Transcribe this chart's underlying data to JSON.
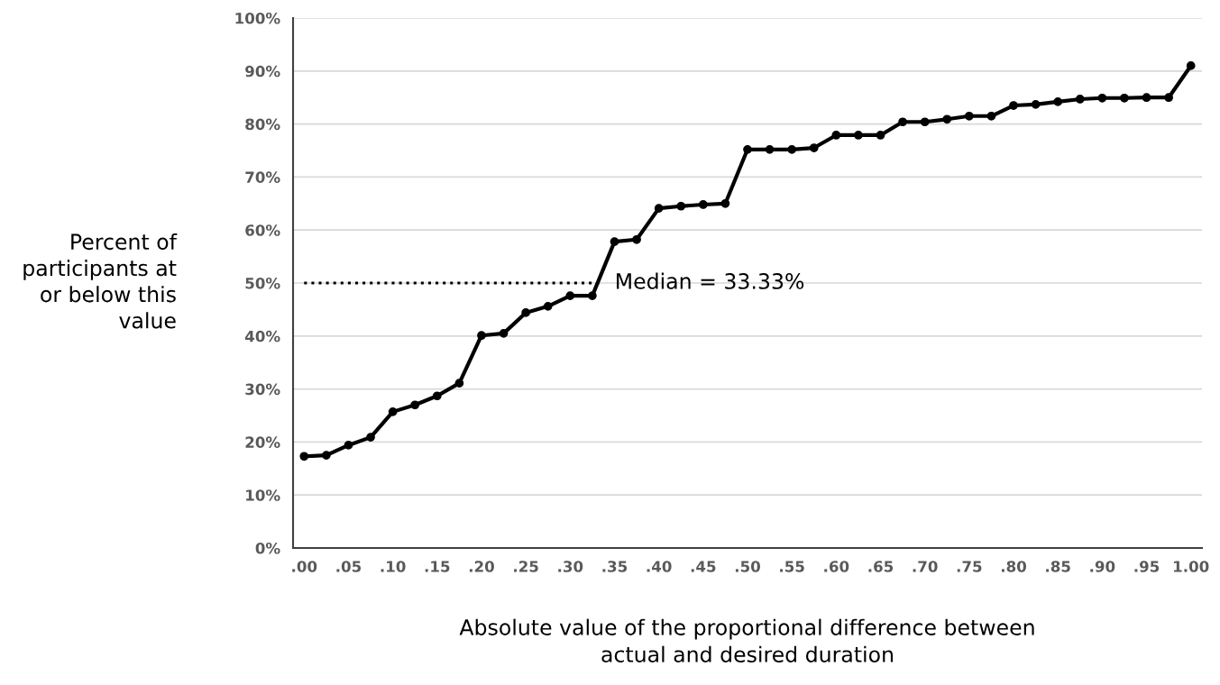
{
  "chart_data": {
    "type": "line",
    "xlabel": "Absolute value of the proportional difference between\nactual and desired duration",
    "ylabel": "Percent of\nparticipants at\nor below this\nvalue",
    "series": [
      {
        "color": "#000000",
        "marker": "circle",
        "line_style": "solid",
        "x": [
          0,
          0.025,
          0.05,
          0.075,
          0.1,
          0.125,
          0.15,
          0.175,
          0.2,
          0.225,
          0.25,
          0.275,
          0.3,
          0.325,
          0.35,
          0.375,
          0.4,
          0.425,
          0.45,
          0.475,
          0.5,
          0.525,
          0.55,
          0.575,
          0.6,
          0.625,
          0.65,
          0.675,
          0.7,
          0.725,
          0.75,
          0.775,
          0.8,
          0.825,
          0.85,
          0.875,
          0.9,
          0.925,
          0.95,
          0.975,
          1.0
        ],
        "values": [
          17.3,
          17.5,
          19.4,
          20.9,
          25.7,
          27.0,
          28.7,
          31.1,
          40.1,
          40.5,
          44.4,
          45.6,
          47.6,
          47.6,
          57.8,
          58.2,
          64.1,
          64.5,
          64.8,
          65.0,
          75.2,
          75.2,
          75.2,
          75.5,
          77.9,
          77.9,
          77.9,
          80.4,
          80.4,
          80.9,
          81.5,
          81.5,
          83.5,
          83.7,
          84.2,
          84.7,
          84.9,
          84.9,
          85.0,
          85.0,
          91.0
        ]
      },
      {
        "color": "#000000",
        "marker": "none",
        "line_style": "dotted",
        "x": [
          0,
          0.3333
        ],
        "values": [
          50,
          50
        ]
      }
    ],
    "annotations": [
      {
        "text": "Median = 33.33%",
        "x": 0.3333,
        "y": 50
      }
    ],
    "xlim": [
      -0.0125,
      1.0125
    ],
    "xticks": [
      {
        "value": 0,
        "label": ".00"
      },
      {
        "value": 0.05,
        "label": ".05"
      },
      {
        "value": 0.1,
        "label": ".10"
      },
      {
        "value": 0.15,
        "label": ".15"
      },
      {
        "value": 0.2,
        "label": ".20"
      },
      {
        "value": 0.25,
        "label": ".25"
      },
      {
        "value": 0.3,
        "label": ".30"
      },
      {
        "value": 0.35,
        "label": ".35"
      },
      {
        "value": 0.4,
        "label": ".40"
      },
      {
        "value": 0.45,
        "label": ".45"
      },
      {
        "value": 0.5,
        "label": ".50"
      },
      {
        "value": 0.55,
        "label": ".55"
      },
      {
        "value": 0.6,
        "label": ".60"
      },
      {
        "value": 0.65,
        "label": ".65"
      },
      {
        "value": 0.7,
        "label": ".70"
      },
      {
        "value": 0.75,
        "label": ".75"
      },
      {
        "value": 0.8,
        "label": ".80"
      },
      {
        "value": 0.85,
        "label": ".85"
      },
      {
        "value": 0.9,
        "label": ".90"
      },
      {
        "value": 0.95,
        "label": ".95"
      },
      {
        "value": 1.0,
        "label": "1.00"
      }
    ],
    "ylim": [
      0,
      100
    ],
    "yticks": [
      {
        "value": 0,
        "label": "0%"
      },
      {
        "value": 10,
        "label": "10%"
      },
      {
        "value": 20,
        "label": "20%"
      },
      {
        "value": 30,
        "label": "30%"
      },
      {
        "value": 40,
        "label": "40%"
      },
      {
        "value": 50,
        "label": "50%"
      },
      {
        "value": 60,
        "label": "60%"
      },
      {
        "value": 70,
        "label": "70%"
      },
      {
        "value": 80,
        "label": "80%"
      },
      {
        "value": 90,
        "label": "90%"
      },
      {
        "value": 100,
        "label": "100%"
      }
    ],
    "grid": "y"
  }
}
